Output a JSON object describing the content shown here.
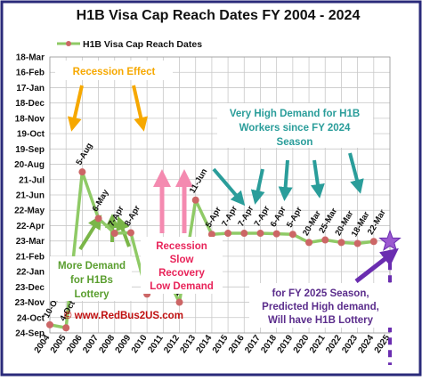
{
  "chart_data": {
    "type": "line",
    "title": "H1B Visa  Cap Reach Dates FY 2004 - 2024",
    "legend": {
      "label": "H1B Visa Cap Reach Dates",
      "position": "top-left"
    },
    "y_tick_labels": [
      "18-Mar",
      "16-Feb",
      "17-Jan",
      "18-Dec",
      "18-Nov",
      "19-Oct",
      "19-Sep",
      "20-Aug",
      "21-Jul",
      "21-Jun",
      "22-May",
      "22-Apr",
      "23-Mar",
      "21-Feb",
      "22-Jan",
      "23-Dec",
      "23-Nov",
      "24-Oct",
      "24-Sep"
    ],
    "x_tick_labels": [
      "2004",
      "2005",
      "2006",
      "2007",
      "2008",
      "2009",
      "2010",
      "2011",
      "2012",
      "2013",
      "2014",
      "2015",
      "2016",
      "2017",
      "2018",
      "2019",
      "2020",
      "2021",
      "2022",
      "2023",
      "2024",
      "2025"
    ],
    "ylim": [
      "24-Sep",
      "18-Mar"
    ],
    "grid": true,
    "series": [
      {
        "name": "H1B Visa Cap Reach Dates",
        "points": [
          {
            "x": "2004",
            "y": "10-Oct",
            "label": "10-Oct"
          },
          {
            "x": "2005",
            "y": "4-Oct",
            "label": "4-Oct"
          },
          {
            "x": "2006",
            "y": "5-Aug",
            "label": "5-Aug"
          },
          {
            "x": "2007",
            "y": "6-May",
            "label": "6-May"
          },
          {
            "x": "2008",
            "y": "7-Apr",
            "label": "7-Apr"
          },
          {
            "x": "2009",
            "y": "8-Apr",
            "label": "8-Apr"
          },
          {
            "x": "2010",
            "y": "9-Dec",
            "label": "9-Dec"
          },
          {
            "x": "2011",
            "y": "26-Jan",
            "label": "26-Jan"
          },
          {
            "x": "2012",
            "y": "23-Nov",
            "label": "23-Nov"
          },
          {
            "x": "2013",
            "y": "11-Jun",
            "label": "11-Jun"
          },
          {
            "x": "2014",
            "y": "5-Apr",
            "label": "5-Apr"
          },
          {
            "x": "2015",
            "y": "7-Apr",
            "label": "7-Apr"
          },
          {
            "x": "2016",
            "y": "7-Apr",
            "label": "7-Apr"
          },
          {
            "x": "2017",
            "y": "7-Apr",
            "label": "7-Apr"
          },
          {
            "x": "2018",
            "y": "6-Apr",
            "label": "6-Apr"
          },
          {
            "x": "2019",
            "y": "5-Apr",
            "label": "5-Apr"
          },
          {
            "x": "2020",
            "y": "20-Mar",
            "label": "20-Mar"
          },
          {
            "x": "2021",
            "y": "25-Mar",
            "label": "25-Mar"
          },
          {
            "x": "2022",
            "y": "20-Mar",
            "label": "20-Mar"
          },
          {
            "x": "2023",
            "y": "18-Mar",
            "label": "18-Mar"
          },
          {
            "x": "2024",
            "y": "22-Mar",
            "label": "22-Mar"
          }
        ]
      }
    ],
    "forecast": {
      "x": "2025",
      "marker": "star"
    },
    "annotations": [
      {
        "id": "recession",
        "text": "Recession Effect",
        "color": "#f6a800"
      },
      {
        "id": "demand",
        "text": [
          "Very High Demand for H1B",
          "Workers since FY 2024",
          "Season"
        ],
        "color": "#2a9d9a"
      },
      {
        "id": "more_demand",
        "text": [
          "More Demand",
          "for H1Bs",
          "Lottery"
        ],
        "color": "#5a9e2f"
      },
      {
        "id": "slow",
        "text": [
          "Recession",
          "Slow",
          "Recovery",
          "Low Demand"
        ],
        "color": "#e8245a"
      },
      {
        "id": "fy2025",
        "text": [
          "for FY 2025 Season,",
          "Predicted High demand,",
          "Will have H1B Lottery"
        ],
        "color": "#5b2d8c"
      },
      {
        "id": "site",
        "text": "© www.RedBus2US.com",
        "color": "#c01010"
      }
    ],
    "colors": {
      "line": "#8fca66",
      "marker": "#cc6666",
      "star": "#9b59d0",
      "frame": "#2a2a7a"
    }
  }
}
